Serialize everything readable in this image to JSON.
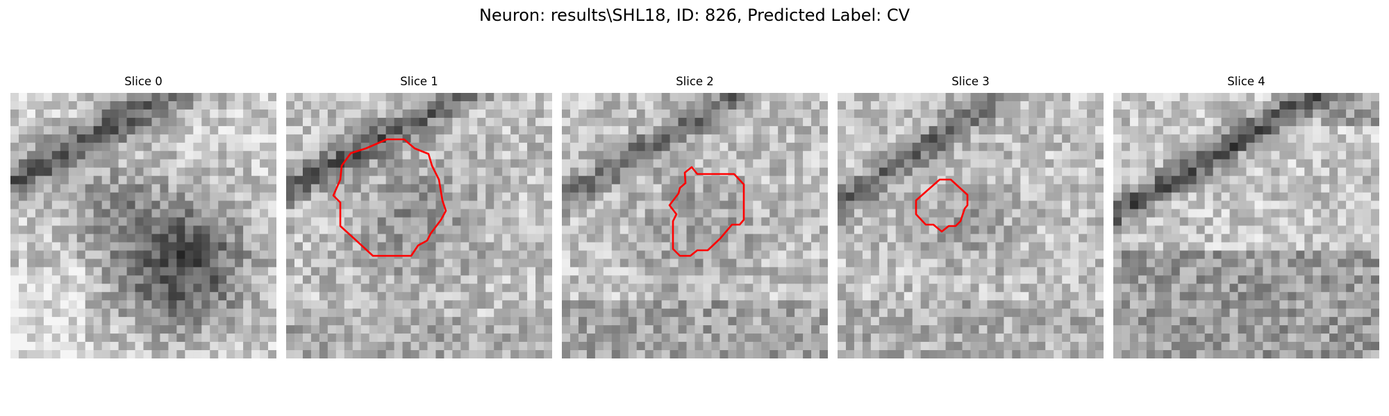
{
  "figure": {
    "title": "Neuron: results\\SHL18, ID: 826, Predicted Label: CV"
  },
  "panels": [
    {
      "title": "Slice 0",
      "has_outline": false
    },
    {
      "title": "Slice 1",
      "has_outline": true
    },
    {
      "title": "Slice 2",
      "has_outline": true
    },
    {
      "title": "Slice 3",
      "has_outline": true
    },
    {
      "title": "Slice 4",
      "has_outline": false
    }
  ],
  "colors": {
    "background": "#ffffff",
    "outline": "#ff0000",
    "colormap": "gray"
  }
}
